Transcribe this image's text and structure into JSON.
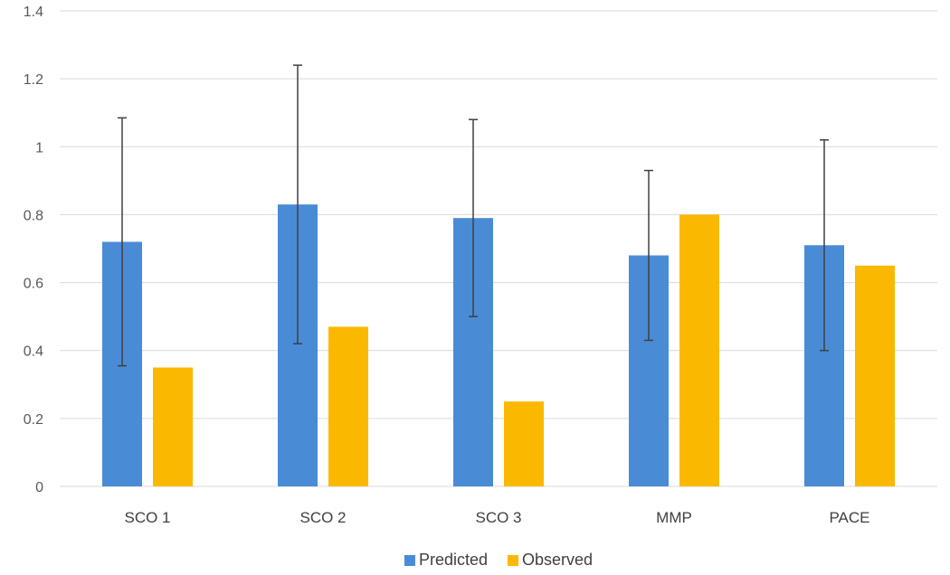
{
  "chart_data": {
    "type": "bar",
    "categories": [
      "SCO 1",
      "SCO 2",
      "SCO 3",
      "MMP",
      "PACE"
    ],
    "series": [
      {
        "name": "Predicted",
        "color": "#4a8bd6",
        "values": [
          0.72,
          0.83,
          0.79,
          0.68,
          0.71
        ],
        "error_low": [
          0.355,
          0.42,
          0.5,
          0.43,
          0.4
        ],
        "error_high": [
          1.085,
          1.24,
          1.08,
          0.93,
          1.02
        ]
      },
      {
        "name": "Observed",
        "color": "#fbb800",
        "values": [
          0.35,
          0.47,
          0.25,
          0.8,
          0.65
        ]
      }
    ],
    "ylim": [
      0,
      1.4
    ],
    "yticks": [
      "0",
      "0.2",
      "0.4",
      "0.6",
      "0.8",
      "1",
      "1.2",
      "1.4"
    ],
    "ytick_values": [
      0,
      0.2,
      0.4,
      0.6,
      0.8,
      1,
      1.2,
      1.4
    ],
    "grid": true,
    "legend": "bottom-center",
    "title": "",
    "xlabel": "",
    "ylabel": ""
  }
}
